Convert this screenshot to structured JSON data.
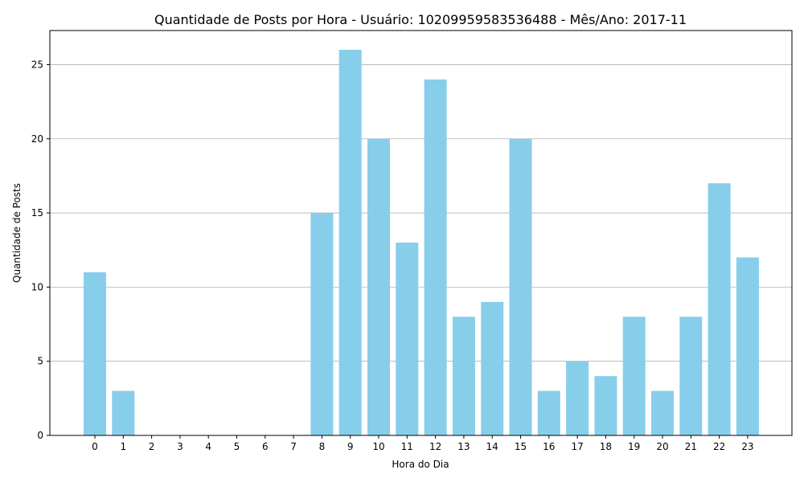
{
  "chart_data": {
    "type": "bar",
    "title": "Quantidade de Posts por Hora - Usuário: 10209959583536488 - Mês/Ano: 2017-11",
    "xlabel": "Hora do Dia",
    "ylabel": "Quantidade de Posts",
    "categories": [
      "0",
      "1",
      "2",
      "3",
      "4",
      "5",
      "6",
      "7",
      "8",
      "9",
      "10",
      "11",
      "12",
      "13",
      "14",
      "15",
      "16",
      "17",
      "18",
      "19",
      "20",
      "21",
      "22",
      "23"
    ],
    "values": [
      11,
      3,
      0,
      0,
      0,
      0,
      0,
      0,
      15,
      26,
      20,
      13,
      24,
      8,
      9,
      20,
      3,
      5,
      4,
      8,
      3,
      8,
      17,
      12
    ],
    "ylim": [
      0,
      27.3
    ],
    "yticks": [
      0,
      5,
      10,
      15,
      20,
      25
    ],
    "grid": "y",
    "bar_color": "#87CEEB",
    "grid_color": "#b0b0b0"
  }
}
